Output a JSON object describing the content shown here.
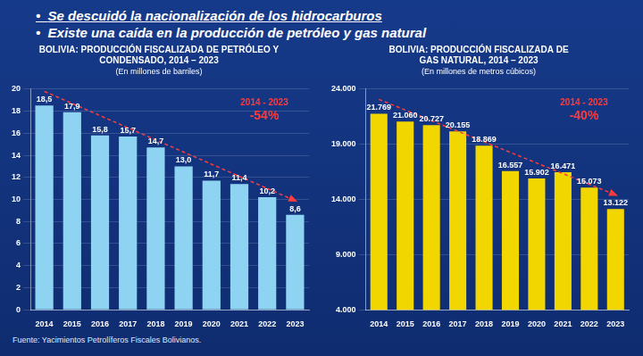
{
  "header": {
    "bullets": [
      "Se descuidó la nacionalización de los hidrocarburos",
      "Existe una caída en la producción de petróleo y gas natural"
    ]
  },
  "chart_data": [
    {
      "type": "bar",
      "title": [
        "BOLIVIA: PRODUCCIÓN FISCALIZADA DE PETRÓLEO Y",
        "CONDENSADO, 2014 – 2023"
      ],
      "subtitle": "(En millones de barriles)",
      "categories": [
        "2014",
        "2015",
        "2016",
        "2017",
        "2018",
        "2019",
        "2020",
        "2021",
        "2022",
        "2023"
      ],
      "values": [
        18.5,
        17.9,
        15.8,
        15.7,
        14.7,
        13.0,
        11.7,
        11.4,
        10.2,
        8.6
      ],
      "value_labels": [
        "18,5",
        "17,9",
        "15,8",
        "15,7",
        "14,7",
        "13,0",
        "11,7",
        "11,4",
        "10,2",
        "8,6"
      ],
      "color": "#8fd3f2",
      "ylim": [
        0,
        20
      ],
      "yticks": [
        0,
        2,
        4,
        6,
        8,
        10,
        12,
        14,
        16,
        18,
        20
      ],
      "grid": true,
      "data_labels": true,
      "annotation": {
        "period": "2014 - 2023",
        "change": "-54%"
      }
    },
    {
      "type": "bar",
      "title": [
        "BOLIVIA: PRODUCCIÓN FISCALIZADA DE",
        "GAS NATURAL, 2014 – 2023"
      ],
      "subtitle": "(En millones de metros cúbicos)",
      "categories": [
        "2014",
        "2015",
        "2016",
        "2017",
        "2018",
        "2019",
        "2020",
        "2021",
        "2022",
        "2023"
      ],
      "values": [
        21769,
        21060,
        20727,
        20155,
        18869,
        16557,
        15902,
        16471,
        15073,
        13122
      ],
      "value_labels": [
        "21.769",
        "21.060",
        "20.727",
        "20.155",
        "18.869",
        "16.557",
        "15.902",
        "16.471",
        "15.073",
        "13.122"
      ],
      "color": "#f2d600",
      "ylim": [
        4000,
        24000
      ],
      "yticks": [
        {
          "value": 4000,
          "label": "4.000"
        },
        {
          "value": 9000,
          "label": "9.000"
        },
        {
          "value": 14000,
          "label": "14.000"
        },
        {
          "value": 19000,
          "label": "19.000"
        },
        {
          "value": 24000,
          "label": "24.000"
        }
      ],
      "grid": true,
      "data_labels": true,
      "annotation": {
        "period": "2014 - 2023",
        "change": "-40%"
      }
    }
  ],
  "source": "Fuente: Yacimientos Petrolíferos Fiscales Bolivianos."
}
